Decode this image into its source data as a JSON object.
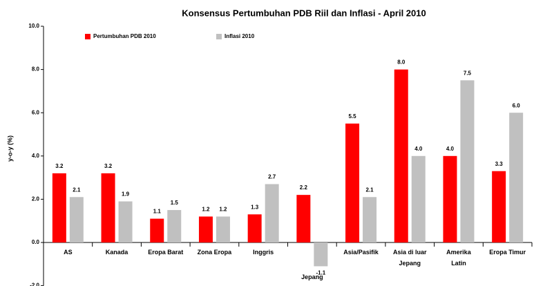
{
  "chart_data": {
    "type": "bar",
    "title": "Konsensus Pertumbuhan PDB Riil dan Inflasi - April  2010",
    "y_label": "y-o-y (%)",
    "categories": [
      "AS",
      "Kanada",
      "Eropa Barat",
      "Zona Eropa",
      "Inggris",
      "Jepang",
      "Asia/Pasifik",
      "Asia di luar Jepang",
      "Amerika Latin",
      "Eropa Timur"
    ],
    "series": [
      {
        "name": "Pertumbuhan PDB 2010",
        "color": "#ff0000",
        "values": [
          3.2,
          3.2,
          1.1,
          1.2,
          1.3,
          2.2,
          5.5,
          8,
          4,
          3.3
        ],
        "value_labels": [
          "3.2",
          "3.2",
          "1.1",
          "1.2",
          "1.3",
          "2.2",
          "5.5",
          "8.0",
          "4.0",
          "3.3"
        ]
      },
      {
        "name": "Inflasi 2010",
        "color": "#c0c0c0",
        "values": [
          2.1,
          1.9,
          1.5,
          1.2,
          2.7,
          -1.1,
          2.1,
          4,
          7.5,
          6
        ],
        "value_labels": [
          "2.1",
          "1.9",
          "1.5",
          "1.2",
          "2.7",
          "-1.1",
          "2.1",
          "4.0",
          "7.5",
          "6.0"
        ]
      }
    ],
    "ylim": [
      -2,
      10
    ],
    "yticks": [
      {
        "value": -2,
        "label": "-2.0"
      },
      {
        "value": 0,
        "label": "0.0"
      },
      {
        "value": 2,
        "label": "2.0"
      },
      {
        "value": 4,
        "label": "4.0"
      },
      {
        "value": 6,
        "label": "6.0"
      },
      {
        "value": 8,
        "label": "8.0"
      },
      {
        "value": 10,
        "label": "10.0"
      }
    ],
    "legend": "top-left"
  }
}
